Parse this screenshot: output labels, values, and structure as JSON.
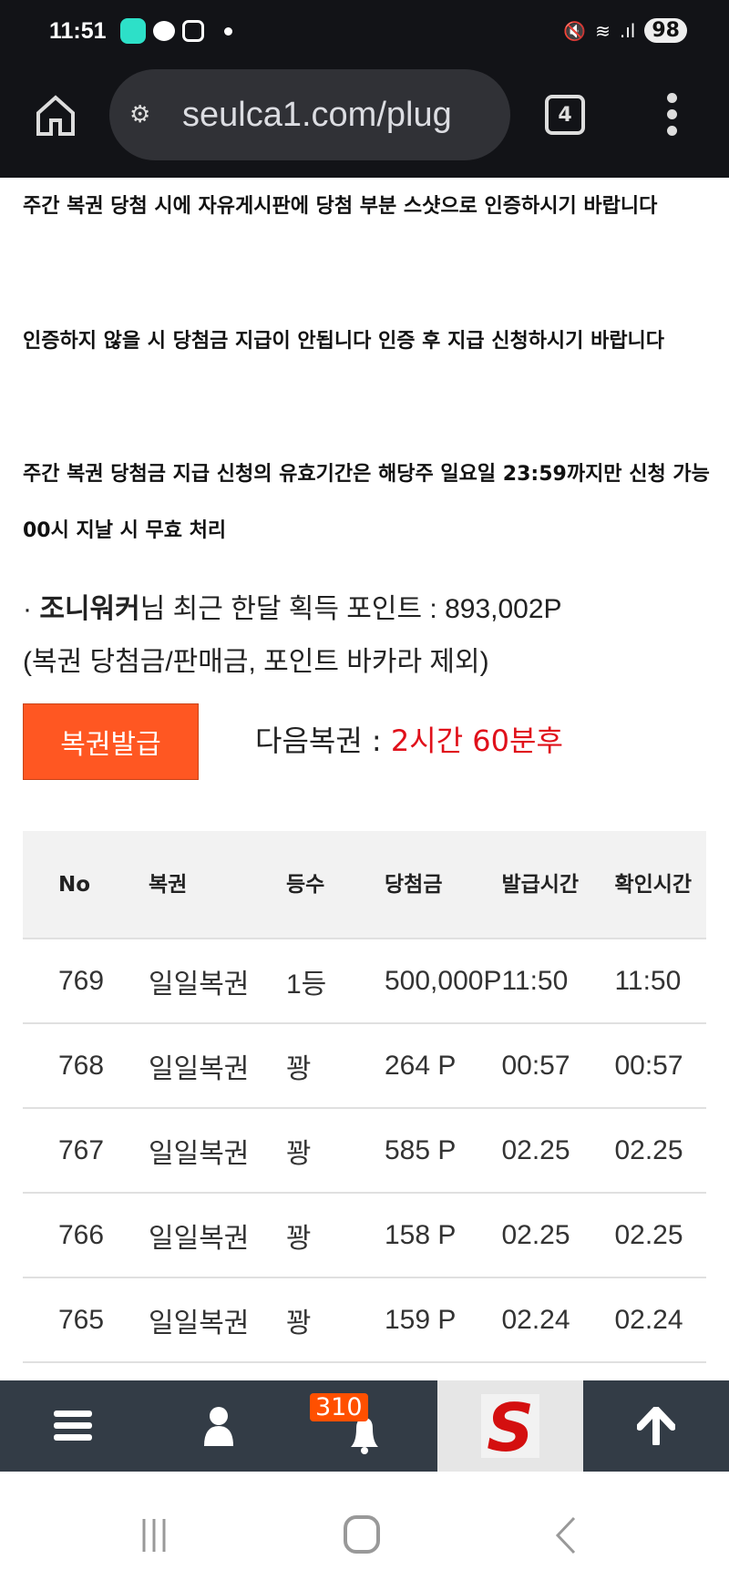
{
  "status_bar": {
    "time": "11:51",
    "battery": "98",
    "icons": [
      "app-icon",
      "kakaotalk-icon",
      "instagram-icon",
      "dot-icon",
      "mute-icon",
      "wifi-icon",
      "signal-icon"
    ]
  },
  "browser": {
    "url": "seulca1.com/plug",
    "tab_count": "4"
  },
  "notices": [
    "주간 복권 당첨 시에 자유게시판에 당첨 부분 스샷으로 인증하시기 바랍니다",
    "인증하지 않을 시 당첨금 지급이 안됩니다 인증 후 지급 신청하시기 바랍니다",
    "주간 복권 당첨금 지급 신청의 유효기간은 해당주 일요일 23:59까지만 신청 가능 00시 지날 시 무효 처리"
  ],
  "points": {
    "bullet": "·",
    "user": "조니워커",
    "suffix": "님 최근 한달 획득 포인트 : 893,002P",
    "note": "(복권 당첨금/판매금, 포인트 바카라 제외)"
  },
  "issue_button": "복권발급",
  "next_lottery": {
    "label": "다음복권 : ",
    "value": "2시간 60분후"
  },
  "table": {
    "headers": [
      "No",
      "복권",
      "등수",
      "당첨금",
      "발급시간",
      "확인시간"
    ],
    "rows": [
      [
        "769",
        "일일복권",
        "1등",
        "500,000P",
        "11:50",
        "11:50"
      ],
      [
        "768",
        "일일복권",
        "꽝",
        "264 P",
        "00:57",
        "00:57"
      ],
      [
        "767",
        "일일복권",
        "꽝",
        "585 P",
        "02.25",
        "02.25"
      ],
      [
        "766",
        "일일복권",
        "꽝",
        "158 P",
        "02.25",
        "02.25"
      ],
      [
        "765",
        "일일복권",
        "꽝",
        "159 P",
        "02.24",
        "02.24"
      ]
    ]
  },
  "bottom_nav": {
    "notification_count": "310"
  },
  "colors": {
    "accent": "#ff5722",
    "highlight": "#e0101a",
    "nav_bg": "#333c46"
  }
}
